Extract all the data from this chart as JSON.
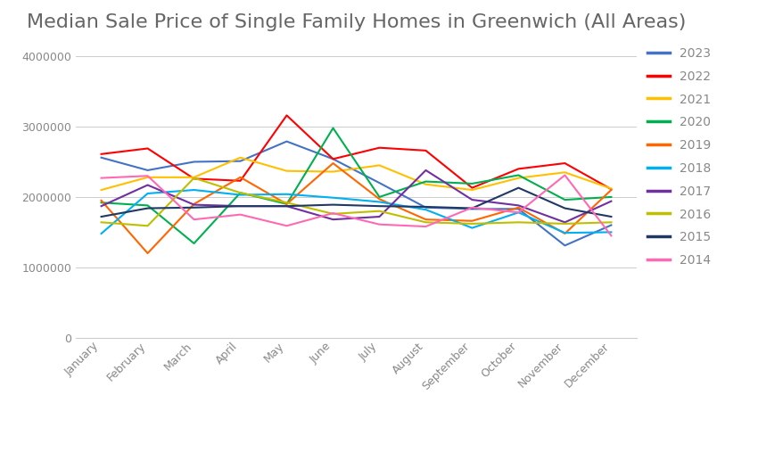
{
  "title": "Median Sale Price of Single Family Homes in Greenwich (All Areas)",
  "months": [
    "January",
    "February",
    "March",
    "April",
    "May",
    "June",
    "July",
    "August",
    "September",
    "October",
    "November",
    "December"
  ],
  "series": {
    "2023": {
      "color": "#4472C4",
      "values": [
        2560000,
        2380000,
        2500000,
        2510000,
        2790000,
        2540000,
        2200000,
        1850000,
        1830000,
        1830000,
        1310000,
        1600000
      ]
    },
    "2022": {
      "color": "#FF0000",
      "values": [
        2610000,
        2690000,
        2260000,
        2230000,
        3160000,
        2540000,
        2700000,
        2660000,
        2130000,
        2400000,
        2480000,
        2110000
      ]
    },
    "2021": {
      "color": "#FFC000",
      "values": [
        2100000,
        2280000,
        2280000,
        2560000,
        2370000,
        2360000,
        2450000,
        2180000,
        2100000,
        2270000,
        2350000,
        2120000
      ]
    },
    "2020": {
      "color": "#00B050",
      "values": [
        1920000,
        1880000,
        1340000,
        2060000,
        1900000,
        2980000,
        2000000,
        2220000,
        2190000,
        2310000,
        1960000,
        2000000
      ]
    },
    "2019": {
      "color": "#FF6600",
      "values": [
        1950000,
        1200000,
        1900000,
        2280000,
        1900000,
        2480000,
        1970000,
        1680000,
        1660000,
        1850000,
        1480000,
        2100000
      ]
    },
    "2018": {
      "color": "#00B0F0",
      "values": [
        1480000,
        2050000,
        2100000,
        2030000,
        2040000,
        1990000,
        1930000,
        1820000,
        1560000,
        1780000,
        1490000,
        1500000
      ]
    },
    "2017": {
      "color": "#7030A0",
      "values": [
        1870000,
        2170000,
        1890000,
        1870000,
        1870000,
        1680000,
        1720000,
        2380000,
        1960000,
        1880000,
        1640000,
        1940000
      ]
    },
    "2016": {
      "color": "#BFBF00",
      "values": [
        1640000,
        1590000,
        2270000,
        2060000,
        1920000,
        1760000,
        1800000,
        1640000,
        1620000,
        1640000,
        1620000,
        1640000
      ]
    },
    "2015": {
      "color": "#1F3864",
      "values": [
        1720000,
        1840000,
        1850000,
        1870000,
        1870000,
        1890000,
        1870000,
        1860000,
        1840000,
        2130000,
        1840000,
        1720000
      ]
    },
    "2014": {
      "color": "#FF69B4",
      "values": [
        2270000,
        2300000,
        1680000,
        1750000,
        1590000,
        1770000,
        1610000,
        1580000,
        1850000,
        1780000,
        2310000,
        1450000
      ]
    }
  },
  "ylim": [
    0,
    4200000
  ],
  "yticks": [
    0,
    1000000,
    2000000,
    3000000,
    4000000
  ],
  "background_color": "#FFFFFF",
  "grid_color": "#CCCCCC",
  "title_fontsize": 16,
  "title_color": "#666666"
}
